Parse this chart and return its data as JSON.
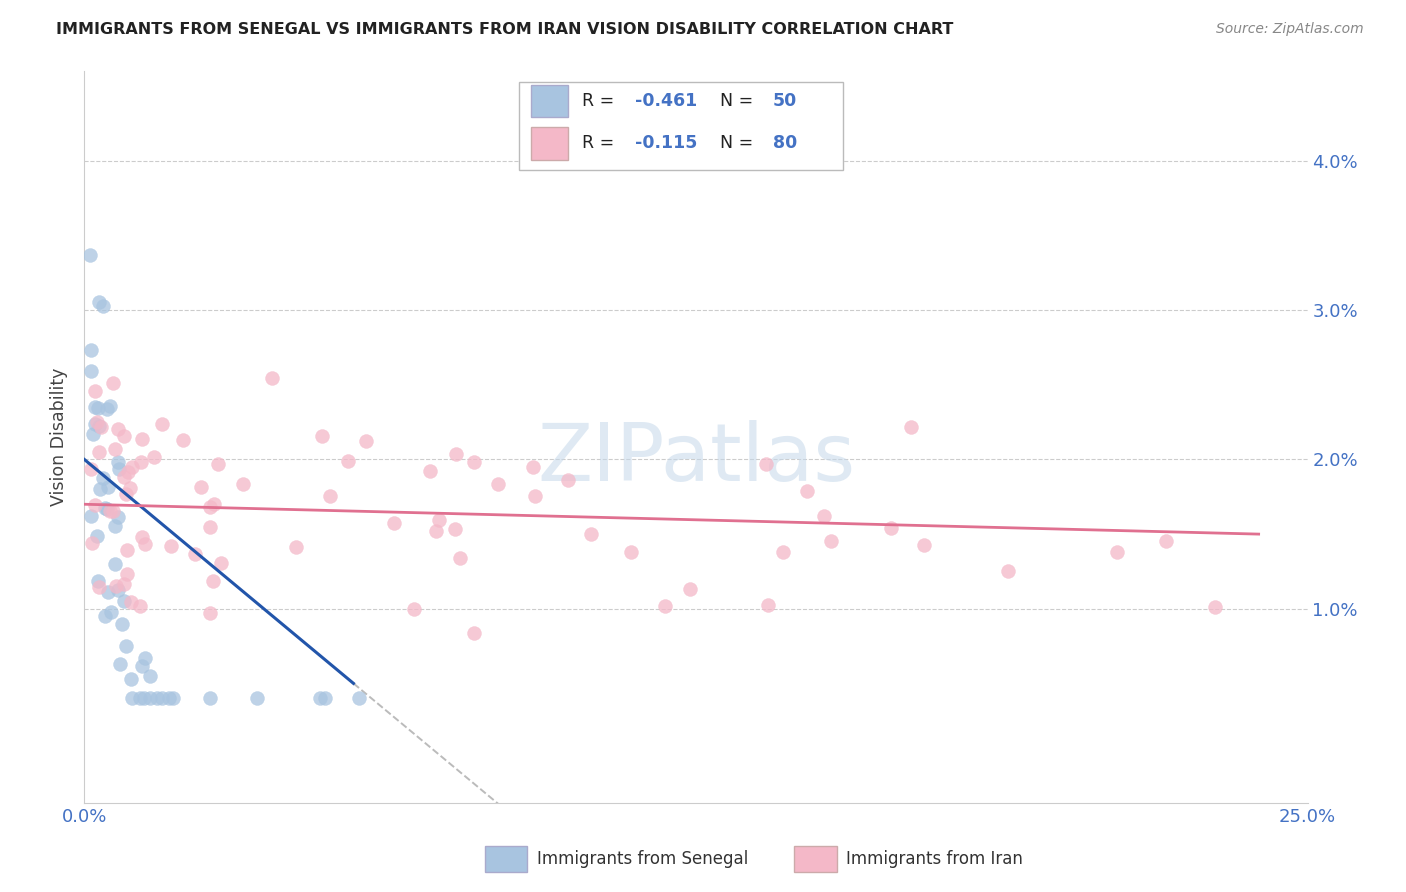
{
  "title": "IMMIGRANTS FROM SENEGAL VS IMMIGRANTS FROM IRAN VISION DISABILITY CORRELATION CHART",
  "source": "Source: ZipAtlas.com",
  "ylabel": "Vision Disability",
  "y_ticks": [
    0.01,
    0.02,
    0.03,
    0.04
  ],
  "y_tick_labels": [
    "1.0%",
    "2.0%",
    "3.0%",
    "4.0%"
  ],
  "xlim": [
    0.0,
    0.25
  ],
  "ylim": [
    -0.003,
    0.046
  ],
  "senegal_color": "#a8c4e0",
  "iran_color": "#f4b8c8",
  "senegal_line_color": "#2255aa",
  "iran_line_color": "#e07090",
  "watermark": "ZIPatlas",
  "legend_R_color": "#4472c4",
  "legend_N_color": "#4472c4",
  "legend_label_color": "#222222",
  "tick_color": "#4472c4",
  "grid_color": "#cccccc",
  "title_color": "#222222",
  "source_color": "#888888"
}
